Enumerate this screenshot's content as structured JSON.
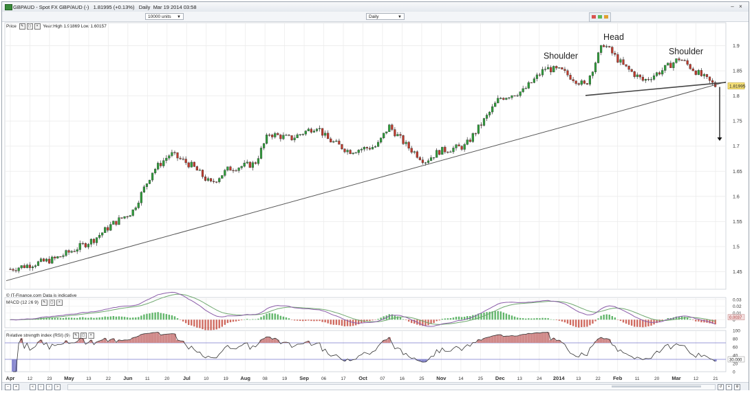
{
  "window": {
    "symbol": "GBPAUD",
    "description": "Spot FX GBP/AUD (-)",
    "last": "1.81995",
    "change": "(+0.13%)",
    "interval": "Daily",
    "timestamp": "Mar 19 2014 03:58"
  },
  "controls": {
    "units": "10000 units",
    "period": "Daily"
  },
  "price_panel": {
    "label": "Price",
    "year_range": "Year:High 1.91869 Low 1.60157",
    "copyright": "© IT-Finance.com  Data is indicative",
    "current_price_tag": "1.81995"
  },
  "macd_panel": {
    "label": "MACD (12 26 9)",
    "value_tag": "0.0037"
  },
  "rsi_panel": {
    "label": "Relative strength index (RSI) (9)",
    "value_tag": "30.000"
  },
  "colors": {
    "bull": "#2e9e3a",
    "bear": "#c0392b",
    "macd_line": "#8a5ba8",
    "signal_line": "#6fa86f",
    "rsi_line": "#333333",
    "rsi_fill": "#d08a8a",
    "price_tag_bg": "#f7e27a"
  },
  "chart_data": [
    {
      "type": "line",
      "panel": "price",
      "subtype": "candlestick",
      "y_ticks": [
        "1.45",
        "1.5",
        "1.55",
        "1.6",
        "1.65",
        "1.7",
        "1.75",
        "1.8",
        "1.85",
        "1.9"
      ],
      "ylim": [
        1.415,
        1.935
      ],
      "x_labels": [
        "Apr",
        "12",
        "23",
        "May",
        "13",
        "22",
        "Jun",
        "11",
        "20",
        "Jul",
        "10",
        "19",
        "Aug",
        "08",
        "19",
        "Sep",
        "06",
        "17",
        "Oct",
        "07",
        "16",
        "25",
        "Nov",
        "14",
        "25",
        "Dec",
        "13",
        "24",
        "2014",
        "13",
        "22",
        "Feb",
        "11",
        "20",
        "Mar",
        "12",
        "21"
      ],
      "x_label_month_start": [
        true,
        false,
        false,
        true,
        false,
        false,
        true,
        false,
        false,
        true,
        false,
        false,
        true,
        false,
        false,
        true,
        false,
        false,
        true,
        false,
        false,
        false,
        true,
        false,
        false,
        true,
        false,
        false,
        true,
        false,
        false,
        true,
        false,
        false,
        true,
        false,
        false
      ],
      "approx_close_path": [
        {
          "date": "2013-04-01",
          "close": 1.455
        },
        {
          "date": "2013-04-12",
          "close": 1.465
        },
        {
          "date": "2013-04-23",
          "close": 1.475
        },
        {
          "date": "2013-05-01",
          "close": 1.49
        },
        {
          "date": "2013-05-13",
          "close": 1.515
        },
        {
          "date": "2013-05-22",
          "close": 1.545
        },
        {
          "date": "2013-06-01",
          "close": 1.57
        },
        {
          "date": "2013-06-11",
          "close": 1.65
        },
        {
          "date": "2013-06-20",
          "close": 1.685
        },
        {
          "date": "2013-07-01",
          "close": 1.66
        },
        {
          "date": "2013-07-10",
          "close": 1.625
        },
        {
          "date": "2013-07-19",
          "close": 1.655
        },
        {
          "date": "2013-08-01",
          "close": 1.665
        },
        {
          "date": "2013-08-08",
          "close": 1.725
        },
        {
          "date": "2013-08-19",
          "close": 1.715
        },
        {
          "date": "2013-09-01",
          "close": 1.74
        },
        {
          "date": "2013-09-06",
          "close": 1.715
        },
        {
          "date": "2013-09-17",
          "close": 1.69
        },
        {
          "date": "2013-10-01",
          "close": 1.7
        },
        {
          "date": "2013-10-07",
          "close": 1.74
        },
        {
          "date": "2013-10-16",
          "close": 1.7
        },
        {
          "date": "2013-10-25",
          "close": 1.67
        },
        {
          "date": "2013-11-01",
          "close": 1.69
        },
        {
          "date": "2013-11-14",
          "close": 1.7
        },
        {
          "date": "2013-11-25",
          "close": 1.76
        },
        {
          "date": "2013-12-01",
          "close": 1.795
        },
        {
          "date": "2013-12-13",
          "close": 1.81
        },
        {
          "date": "2013-12-24",
          "close": 1.855
        },
        {
          "date": "2014-01-01",
          "close": 1.85
        },
        {
          "date": "2014-01-13",
          "close": 1.82
        },
        {
          "date": "2014-01-22",
          "close": 1.905
        },
        {
          "date": "2014-02-01",
          "close": 1.86
        },
        {
          "date": "2014-02-11",
          "close": 1.83
        },
        {
          "date": "2014-02-20",
          "close": 1.85
        },
        {
          "date": "2014-03-01",
          "close": 1.875
        },
        {
          "date": "2014-03-12",
          "close": 1.84
        },
        {
          "date": "2014-03-19",
          "close": 1.82
        }
      ],
      "annotations": [
        {
          "text": "Shoulder"
        },
        {
          "text": "Head"
        },
        {
          "text": "Shoulder"
        }
      ]
    },
    {
      "type": "line",
      "panel": "macd",
      "y_ticks": [
        "0.03",
        "0.02",
        "0.01",
        "0"
      ],
      "ylim": [
        -0.012,
        0.033
      ]
    },
    {
      "type": "line",
      "panel": "rsi",
      "y_ticks": [
        "100",
        "80",
        "60",
        "40",
        "20",
        "0"
      ],
      "ylim": [
        0,
        100
      ],
      "reference_lines": [
        70,
        30
      ]
    }
  ]
}
